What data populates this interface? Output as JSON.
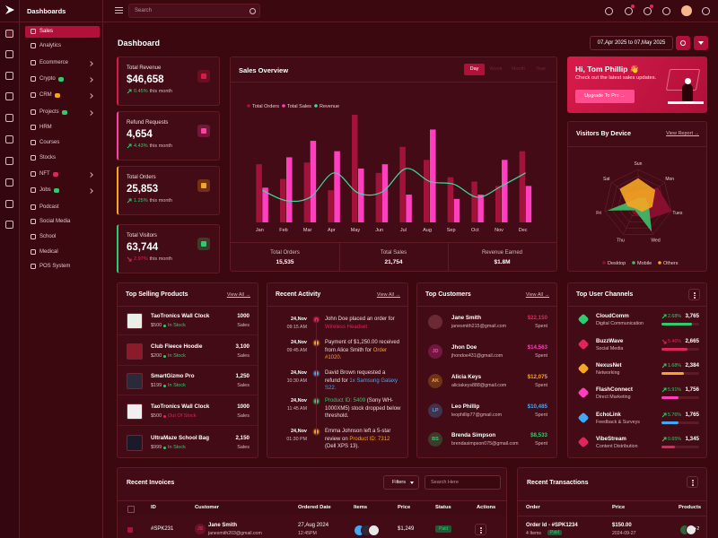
{
  "header": {
    "brand": "Dashboards",
    "search_placeholder": "Search"
  },
  "sidebar": {
    "items": [
      {
        "label": "Sales",
        "active": true
      },
      {
        "label": "Analytics"
      },
      {
        "label": "Ecommerce",
        "submenu": true
      },
      {
        "label": "Crypto",
        "submenu": true,
        "badge_color": "#2ecc71"
      },
      {
        "label": "CRM",
        "submenu": true,
        "badge_color": "#f5a623"
      },
      {
        "label": "Projects",
        "submenu": true,
        "badge_color": "#2ecc71"
      },
      {
        "label": "HRM"
      },
      {
        "label": "Courses"
      },
      {
        "label": "Stocks"
      },
      {
        "label": "NFT",
        "submenu": true,
        "badge_color": "#e0245e"
      },
      {
        "label": "Jobs",
        "submenu": true,
        "badge_color": "#2ecc71"
      },
      {
        "label": "Podcast"
      },
      {
        "label": "Social Media"
      },
      {
        "label": "School"
      },
      {
        "label": "Medical"
      },
      {
        "label": "POS System"
      }
    ]
  },
  "page": {
    "title": "Dashboard",
    "date_range": "07,Apr 2025 to 07,May 2025"
  },
  "stats": [
    {
      "label": "Total Revenue",
      "value": "$46,658",
      "change": "0.45%",
      "trend": "up",
      "period": "this month",
      "color": "#d81b4a"
    },
    {
      "label": "Refund Requests",
      "value": "4,654",
      "change": "4.43%",
      "trend": "up",
      "period": "this month",
      "color": "#ff3fa4"
    },
    {
      "label": "Total Orders",
      "value": "25,853",
      "change": "1.25%",
      "trend": "up",
      "period": "this month",
      "color": "#f5a623"
    },
    {
      "label": "Total Visitors",
      "value": "63,744",
      "change": "2.97%",
      "trend": "down",
      "period": "this month",
      "color": "#2ecc71"
    }
  ],
  "sales_overview": {
    "title": "Sales Overview",
    "tabs": [
      "Day",
      "Week",
      "Month",
      "Year"
    ],
    "active_tab": 0,
    "chart_data": {
      "type": "bar-line",
      "categories": [
        "Jan",
        "Feb",
        "Mar",
        "Apr",
        "May",
        "Jun",
        "Jul",
        "Aug",
        "Sep",
        "Oct",
        "Nov",
        "Dec"
      ],
      "series": [
        {
          "name": "Total Orders",
          "color": "#a3123a",
          "type": "bar",
          "values": [
            67,
            50,
            69,
            37,
            124,
            57,
            87,
            72,
            52,
            47,
            42,
            82
          ]
        },
        {
          "name": "Total Sales",
          "color": "#ff3fbf",
          "type": "bar",
          "values": [
            40,
            75,
            94,
            82,
            62,
            67,
            32,
            107,
            27,
            32,
            72,
            42
          ]
        },
        {
          "name": "Revenue",
          "color": "#3fd9a0",
          "type": "line",
          "values": [
            37,
            25,
            29,
            57,
            34,
            35,
            62,
            47,
            44,
            29,
            42,
            57
          ]
        }
      ]
    },
    "summary": [
      {
        "label": "Total Orders",
        "value": "15,535"
      },
      {
        "label": "Total Sales",
        "value": "21,754"
      },
      {
        "label": "Revenue Earned",
        "value": "$1.8M"
      }
    ]
  },
  "welcome": {
    "title": "Hi, Tom Phillip 👋",
    "subtitle": "Check out the latest sales updates.",
    "button": "Upgrade To Pro →"
  },
  "visitors": {
    "title": "Visitors By Device",
    "link": "View Report →",
    "chart_data": {
      "type": "radar",
      "categories": [
        "Sun",
        "Mon",
        "Tues",
        "Wed",
        "Thu",
        "Fri",
        "Sat"
      ],
      "series": [
        {
          "name": "Desktop",
          "color": "#8e1030",
          "values": [
            35,
            70,
            95,
            50,
            30,
            30,
            45
          ]
        },
        {
          "name": "Mobile",
          "color": "#3fbf6a",
          "values": [
            15,
            25,
            30,
            85,
            20,
            85,
            15
          ]
        },
        {
          "name": "Others",
          "color": "#f5a623",
          "values": [
            70,
            60,
            40,
            25,
            15,
            30,
            65
          ]
        }
      ]
    }
  },
  "top_products": {
    "title": "Top Selling Products",
    "link": "View All →",
    "sales_label": "Sales",
    "items": [
      {
        "name": "TaoTronics Wall Clock",
        "price": "$500",
        "stock": "In Stock",
        "in_stock": true,
        "sales": "1000"
      },
      {
        "name": "Club Fleece Hoodie",
        "price": "$200",
        "stock": "In Stock",
        "in_stock": true,
        "sales": "3,100"
      },
      {
        "name": "SmartGizmo Pro",
        "price": "$199",
        "stock": "In Stock",
        "in_stock": true,
        "sales": "1,250"
      },
      {
        "name": "TaoTronics Wall Clock",
        "price": "$500",
        "stock": "Out Of Stock",
        "in_stock": false,
        "sales": "1000"
      },
      {
        "name": "UltraMaze School Bag",
        "price": "$999",
        "stock": "In Stock",
        "in_stock": true,
        "sales": "2,150"
      }
    ]
  },
  "activity": {
    "title": "Recent Activity",
    "link": "View All →",
    "items": [
      {
        "date": "24,Nov",
        "time": "09:15 AM",
        "color": "#e0245e",
        "text": [
          {
            "t": "John Doe placed an order for "
          },
          {
            "t": "Wireless Headset",
            "color": "#e0245e"
          }
        ]
      },
      {
        "date": "24,Nov",
        "time": "09:45 AM",
        "color": "#f5a623",
        "text": [
          {
            "t": "Payment of $1,250.00 received from Alice Smith for "
          },
          {
            "t": "Order #1020.",
            "color": "#f5a623"
          }
        ]
      },
      {
        "date": "24,Nov",
        "time": "10:30 AM",
        "color": "#3fa9f5",
        "text": [
          {
            "t": "David Brown requested a refund for "
          },
          {
            "t": "1x Samsung Galaxy S22.",
            "color": "#3fa9f5"
          }
        ]
      },
      {
        "date": "24,Nov",
        "time": "11:45 AM",
        "color": "#2ecc71",
        "text": [
          {
            "t": "Product ID: 5409",
            "color": "#2ecc71"
          },
          {
            "t": " (Sony WH-1000XM5) stock dropped below threshold."
          }
        ]
      },
      {
        "date": "24,Nov",
        "time": "01:30 PM",
        "color": "#f5a623",
        "text": [
          {
            "t": "Emma Johnson left a 5-star review on "
          },
          {
            "t": "Product ID: 7312",
            "color": "#f5a623"
          },
          {
            "t": " (Dell XPS 13)."
          }
        ]
      }
    ]
  },
  "customers": {
    "title": "Top Customers",
    "link": "View All →",
    "spent_label": "Spent",
    "items": [
      {
        "name": "Jane Smith",
        "email": "janesmith215@gmail.com",
        "amount": "$22,150",
        "color": "#e0245e"
      },
      {
        "name": "Jhon Doe",
        "email": "jhondoe431@gmail.com",
        "amount": "$14,563",
        "color": "#ff3fbf",
        "initials": "JD"
      },
      {
        "name": "Alicia Keys",
        "email": "aliciakeys888@gmail.com",
        "amount": "$12,075",
        "color": "#f5a623",
        "initials": "AK"
      },
      {
        "name": "Leo Phillip",
        "email": "leophillip77@gmail.com",
        "amount": "$10,485",
        "color": "#3fa9f5",
        "initials": "LP"
      },
      {
        "name": "Brenda Simpson",
        "email": "brendasimpson075@gmail.com",
        "amount": "$8,533",
        "color": "#2ecc71",
        "initials": "BS"
      }
    ]
  },
  "channels": {
    "title": "Top User Channels",
    "items": [
      {
        "name": "CloudComm",
        "category": "Digital Communication",
        "change": "2.68%",
        "trend": "up",
        "value": "3,765",
        "progress": 80,
        "color": "#2ecc71"
      },
      {
        "name": "BuzzWave",
        "category": "Social Media",
        "change": "5.46%",
        "trend": "down",
        "value": "2,665",
        "progress": 70,
        "color": "#e0245e"
      },
      {
        "name": "NexusNet",
        "category": "Networking",
        "change": "1.68%",
        "trend": "up",
        "value": "2,384",
        "progress": 60,
        "color": "#f5a623"
      },
      {
        "name": "FlashConnect",
        "category": "Direct Marketing",
        "change": "5.91%",
        "trend": "up",
        "value": "1,756",
        "progress": 45,
        "color": "#ff3fbf"
      },
      {
        "name": "EchoLink",
        "category": "Feedback & Surveys",
        "change": "5.76%",
        "trend": "up",
        "value": "1,765",
        "progress": 45,
        "color": "#3fa9f5"
      },
      {
        "name": "VibeStream",
        "category": "Content Distribution",
        "change": "0.65%",
        "trend": "up",
        "value": "1,345",
        "progress": 35,
        "color": "#e0245e"
      }
    ]
  },
  "invoices": {
    "title": "Recent Invoices",
    "filter": "Filters",
    "search_placeholder": "Search Here",
    "columns": [
      "ID",
      "Customer",
      "Ordered Date",
      "Items",
      "Price",
      "Status",
      "Actions"
    ],
    "rows": [
      {
        "id": "#SPK231",
        "initials": "JS",
        "customer": "Jane Smith",
        "email": "janesmith203@gmail.com",
        "date": "27,Aug 2024",
        "time": "12:45PM",
        "price": "$1,249",
        "status": "Paid"
      }
    ]
  },
  "transactions": {
    "title": "Recent Transactions",
    "columns": [
      "Order",
      "Price",
      "Products"
    ],
    "rows": [
      {
        "order": "Order Id - #SPK1234",
        "items": "4 Items",
        "status": "Paid",
        "price": "$150.00",
        "date": "2024-09-27",
        "more": "+2"
      }
    ]
  }
}
